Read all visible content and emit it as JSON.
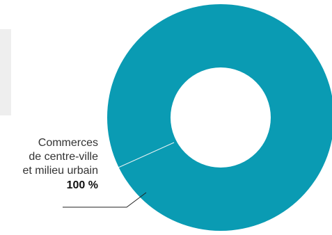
{
  "chart_data": {
    "type": "pie",
    "donut": true,
    "slices": [
      {
        "label_lines": [
          "Commerces",
          "de centre-ville",
          "et milieu urbain"
        ],
        "value": 100,
        "value_label": "100 %",
        "color": "#0a9bb3"
      }
    ],
    "hole_color": "#ffffff",
    "divider_color": "#e9f2f4"
  }
}
